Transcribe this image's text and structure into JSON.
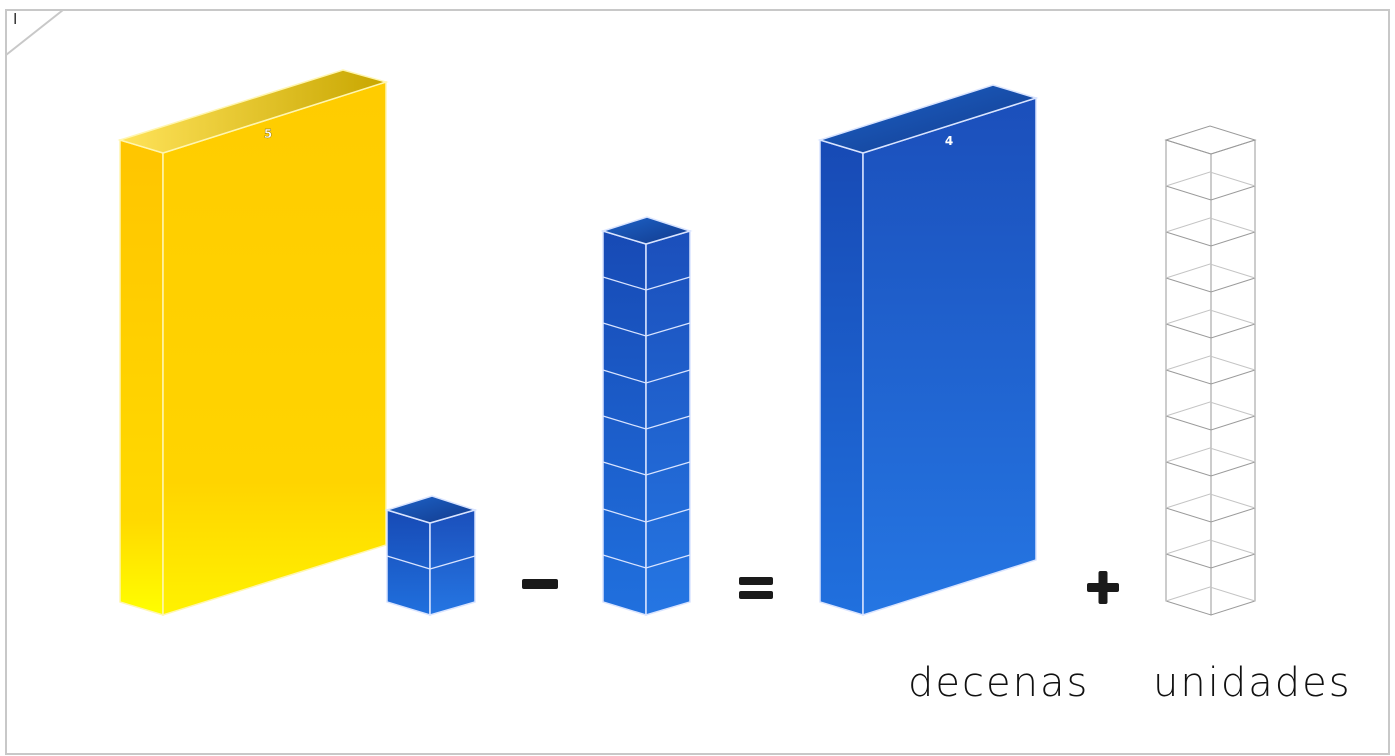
{
  "page": {
    "number": "I"
  },
  "equation": {
    "minuend": {
      "hundreds": 1,
      "hundreds_label": "5",
      "units": 2
    },
    "operator_minus": "–",
    "subtrahend": {
      "units": 8
    },
    "operator_equals": "=",
    "result": {
      "hundreds": 1,
      "hundreds_label": "4",
      "operator_plus": "+",
      "units_outline": 10
    }
  },
  "labels": {
    "tens": "decenas",
    "units": "unidades"
  },
  "colors": {
    "yellow": "#ffcc00",
    "blue": "#1d57c2",
    "outline": "#9a9a9a",
    "frame": "#c8c8c8"
  }
}
